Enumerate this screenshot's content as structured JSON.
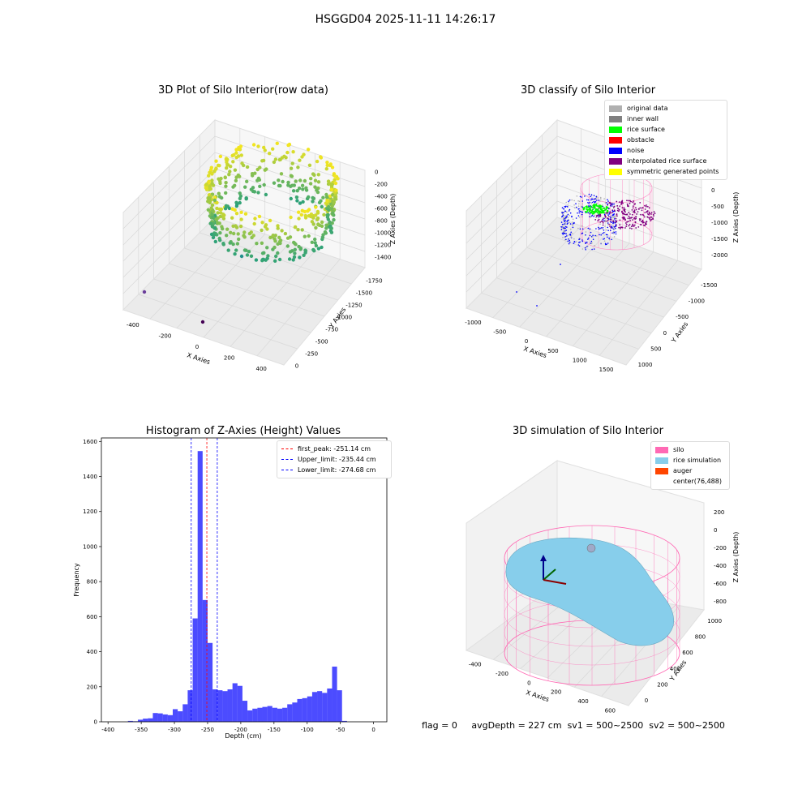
{
  "suptitle": "HSGGD04 2025-11-11 14:26:17",
  "colors": {
    "original": "#b0b0b0",
    "inner_wall": "#808080",
    "rice_surface": "#00ff00",
    "obstacle": "#ff0000",
    "noise": "#0000ff",
    "interpolated": "#800080",
    "symmetric": "#ffff00",
    "hist_bar": "#0000ff",
    "silo": "#ff69b4",
    "rice_sim": "#87ceeb",
    "auger": "#ff4500"
  },
  "panels": {
    "raw": {
      "title": "3D Plot of Silo Interior(row data)",
      "xlabel": "X Axies",
      "ylabel": "Y Axies",
      "zlabel": "Z Axies (Depth)",
      "xticks": [
        "-400",
        "-200",
        "0",
        "200",
        "400"
      ],
      "yticks": [
        "0",
        "-250",
        "-500",
        "-750",
        "-1000",
        "-1250",
        "-1500",
        "-1750"
      ],
      "zticks": [
        "0",
        "-200",
        "-400",
        "-600",
        "-800",
        "-1000",
        "-1200",
        "-1400"
      ]
    },
    "classify": {
      "title": "3D classify of Silo Interior",
      "xlabel": "X Axies",
      "ylabel": "Y Axies",
      "zlabel": "Z Axies (Depth)",
      "xticks": [
        "-1000",
        "-500",
        "0",
        "500",
        "1000",
        "1500"
      ],
      "yticks": [
        "1000",
        "500",
        "0",
        "-500",
        "-1000",
        "-1500"
      ],
      "zticks": [
        "500",
        "0",
        "-500",
        "-1000",
        "-1500",
        "-2000"
      ],
      "legend": [
        {
          "label": "original data",
          "color_key": "original"
        },
        {
          "label": "inner wall",
          "color_key": "inner_wall"
        },
        {
          "label": "rice surface",
          "color_key": "rice_surface"
        },
        {
          "label": "obstacle",
          "color_key": "obstacle"
        },
        {
          "label": "noise",
          "color_key": "noise"
        },
        {
          "label": "interpolated rice surface",
          "color_key": "interpolated"
        },
        {
          "label": "symmetric generated points",
          "color_key": "symmetric"
        }
      ]
    },
    "simulation": {
      "title": "3D simulation of Silo Interior",
      "xlabel": "X Axies",
      "ylabel": "Y Axies",
      "zlabel": "Z Axies (Depth)",
      "xticks": [
        "-400",
        "-200",
        "0",
        "200",
        "400",
        "600"
      ],
      "yticks": [
        "0",
        "200",
        "400",
        "600",
        "800",
        "1000"
      ],
      "zticks": [
        "200",
        "0",
        "-200",
        "-400",
        "-600",
        "-800"
      ],
      "legend": [
        {
          "label": "silo",
          "color_key": "silo"
        },
        {
          "label": "rice simulation",
          "color_key": "rice_sim"
        },
        {
          "label": "auger",
          "color_key": "auger"
        },
        {
          "label": "center(76,488)",
          "color_key": ""
        }
      ]
    }
  },
  "chart_data": [
    {
      "type": "histogram",
      "title": "Histogram of Z-Axies (Height) Values",
      "xlabel": "Depth (cm)",
      "ylabel": "Frequency",
      "xlim": [
        -410,
        20
      ],
      "ylim": [
        0,
        1620
      ],
      "xticks": [
        -400,
        -350,
        -300,
        -250,
        -200,
        -150,
        -100,
        -50,
        0
      ],
      "yticks": [
        0,
        200,
        400,
        600,
        800,
        1000,
        1200,
        1400,
        1600
      ],
      "bin_width": 7.5,
      "bins_start": [
        -370,
        -362.5,
        -355,
        -347.5,
        -340,
        -332.5,
        -325,
        -317.5,
        -310,
        -302.5,
        -295,
        -287.5,
        -280,
        -272.5,
        -265,
        -257.5,
        -250,
        -242.5,
        -235,
        -227.5,
        -220,
        -212.5,
        -205,
        -197.5,
        -190,
        -182.5,
        -175,
        -167.5,
        -160,
        -152.5,
        -145,
        -137.5,
        -130,
        -122.5,
        -115,
        -107.5,
        -100,
        -92.5,
        -85,
        -77.5,
        -70,
        -62.5,
        -55,
        -47.5,
        -40,
        -32.5,
        -25,
        -17.5,
        -10,
        -2.5
      ],
      "counts": [
        5,
        3,
        12,
        18,
        20,
        50,
        48,
        42,
        38,
        72,
        60,
        100,
        180,
        590,
        1545,
        695,
        450,
        185,
        180,
        175,
        185,
        220,
        205,
        120,
        65,
        75,
        80,
        85,
        90,
        80,
        75,
        80,
        100,
        110,
        130,
        135,
        145,
        170,
        175,
        165,
        190,
        315,
        180,
        5,
        0,
        0,
        0,
        0,
        0,
        0
      ],
      "vlines": [
        {
          "label": "first_peak: -251.14 cm",
          "x": -251.14,
          "color": "#ff0000"
        },
        {
          "label": "Upper_limit: -235.44 cm",
          "x": -235.44,
          "color": "#0000ff"
        },
        {
          "label": "Lower_limit: -274.68 cm",
          "x": -274.68,
          "color": "#0000ff"
        }
      ]
    }
  ],
  "footer": {
    "flag": "flag = 0",
    "avg": "avgDepth = 227 cm",
    "sv1": "sv1 = 500~2500",
    "sv2": "sv2 = 500~2500"
  }
}
